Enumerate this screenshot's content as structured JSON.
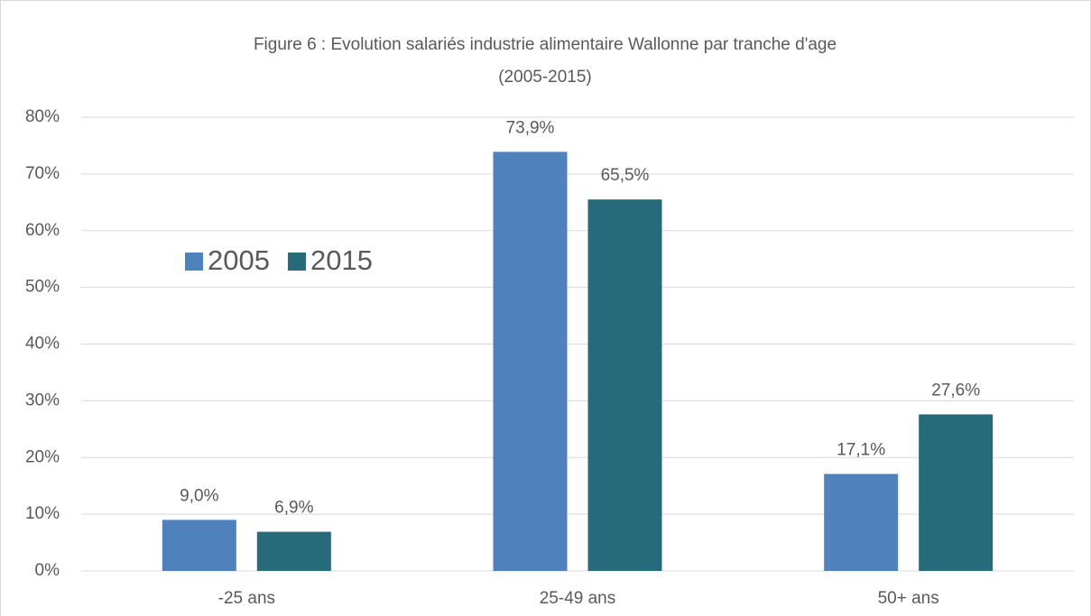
{
  "chart_data": {
    "type": "bar",
    "title": "Figure 6 : Evolution salariés industrie alimentaire Wallonne par tranche d'age",
    "subtitle": "(2005-2015)",
    "categories": [
      "-25 ans",
      "25-49 ans",
      "50+ ans"
    ],
    "series": [
      {
        "name": "2005",
        "color": "#4f81bd",
        "values": [
          9.0,
          73.9,
          17.1
        ],
        "value_labels": [
          "9,0%",
          "73,9%",
          "17,1%"
        ]
      },
      {
        "name": "2015",
        "color": "#276a7a",
        "values": [
          6.9,
          65.5,
          27.6
        ],
        "value_labels": [
          "6,9%",
          "65,5%",
          "27,6%"
        ]
      }
    ],
    "ylim": [
      0,
      80
    ],
    "yticks": [
      {
        "value": 0,
        "label": "0%"
      },
      {
        "value": 10,
        "label": "10%"
      },
      {
        "value": 20,
        "label": "20%"
      },
      {
        "value": 30,
        "label": "30%"
      },
      {
        "value": 40,
        "label": "40%"
      },
      {
        "value": 50,
        "label": "50%"
      },
      {
        "value": 60,
        "label": "60%"
      },
      {
        "value": 70,
        "label": "70%"
      },
      {
        "value": 80,
        "label": "80%"
      }
    ],
    "grid": true,
    "legend": "left"
  }
}
